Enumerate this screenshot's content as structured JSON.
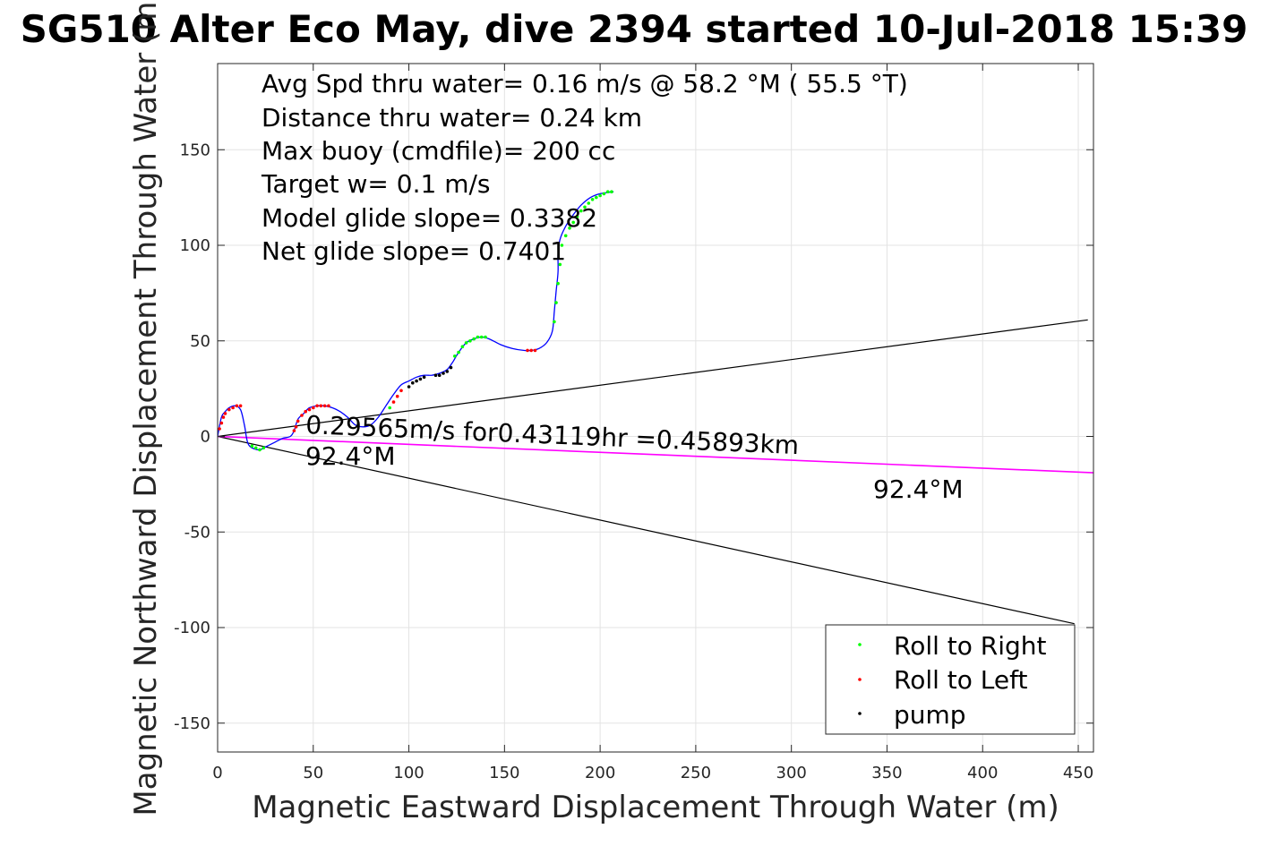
{
  "chart_data": {
    "type": "line",
    "title": "SG510 Alter Eco May, dive 2394 started 10-Jul-2018 15:39",
    "xlabel": "Magnetic Eastward Displacement Through Water (m)",
    "ylabel": "Magnetic Northward Displacement Through Water (m)",
    "xlim": [
      0,
      458
    ],
    "ylim": [
      -165,
      195
    ],
    "xticks": [
      0,
      50,
      100,
      150,
      200,
      250,
      300,
      350,
      400,
      450
    ],
    "yticks": [
      -150,
      -100,
      -50,
      0,
      50,
      100,
      150
    ],
    "grid": true,
    "legend_position": "bottom-right",
    "stats": [
      "Avg Spd thru water=  0.16 m/s @  58.2 °M ( 55.5 °T)",
      "Distance thru water=  0.24 km",
      "Max buoy (cmdfile)= 200 cc",
      "Target w= 0.1 m/s",
      "Model glide slope= 0.3382",
      "Net glide slope= 0.7401"
    ],
    "annotations": {
      "current": "0.29565m/s for0.43119hr =0.45893km",
      "current_heading": "92.4°M",
      "far_heading": "92.4°M"
    },
    "colors": {
      "track": "#0000ff",
      "current": "#ff00ff",
      "roll_right": "#00ff00",
      "roll_left": "#ff0000",
      "pump": "#000000"
    },
    "series": [
      {
        "name": "track",
        "x": [
          0,
          2,
          4,
          6,
          9,
          12,
          14,
          15,
          16,
          18,
          22,
          26,
          30,
          34,
          38,
          40,
          42,
          45,
          48,
          52,
          56,
          60,
          64,
          68,
          72,
          76,
          80,
          84,
          88,
          92,
          96,
          100,
          104,
          108,
          112,
          116,
          120,
          123,
          126,
          130,
          134,
          138,
          142,
          148,
          154,
          160,
          164,
          168,
          172,
          175,
          176,
          177,
          178,
          178,
          179,
          182,
          186,
          190,
          195,
          200,
          207
        ],
        "y": [
          0,
          10,
          13,
          15,
          16,
          14,
          6,
          0,
          -4,
          -6,
          -7,
          -5,
          -3,
          -1,
          0,
          3,
          9,
          12,
          15,
          16,
          16,
          15,
          13,
          10,
          6,
          5,
          6,
          10,
          16,
          22,
          27,
          29,
          31,
          32,
          32,
          33,
          35,
          39,
          44,
          49,
          51,
          52,
          51,
          48,
          46,
          45,
          45,
          46,
          49,
          55,
          65,
          76,
          86,
          95,
          103,
          110,
          116,
          121,
          125,
          127,
          128
        ]
      },
      {
        "name": "Roll to Right",
        "x": [
          18,
          20,
          22,
          24,
          90,
          124,
          126,
          128,
          130,
          132,
          134,
          136,
          138,
          140,
          176,
          177,
          178,
          179,
          180,
          182,
          184,
          186,
          188,
          190,
          192,
          194,
          196,
          198,
          200,
          202,
          204,
          206
        ],
        "y": [
          -5,
          -6,
          -7,
          -6,
          15,
          42,
          44,
          47,
          49,
          50,
          51,
          52,
          52,
          52,
          60,
          70,
          80,
          90,
          100,
          105,
          109,
          112,
          115,
          118,
          120,
          122,
          124,
          125,
          126,
          127,
          128,
          128
        ]
      },
      {
        "name": "Roll to Left",
        "x": [
          1,
          2,
          3,
          4,
          6,
          8,
          10,
          12,
          40,
          41,
          42,
          44,
          46,
          48,
          50,
          52,
          54,
          56,
          58,
          92,
          94,
          96,
          162,
          164,
          166
        ],
        "y": [
          4,
          7,
          10,
          12,
          14,
          15,
          16,
          16,
          3,
          5,
          8,
          11,
          13,
          14,
          15,
          16,
          16,
          16,
          16,
          18,
          21,
          24,
          45,
          45,
          45
        ]
      },
      {
        "name": "pump",
        "x": [
          100,
          102,
          104,
          106,
          108,
          114,
          116,
          118,
          120,
          122
        ],
        "y": [
          26,
          28,
          29,
          30,
          31,
          32,
          32,
          33,
          34,
          36
        ]
      },
      {
        "name": "current",
        "x": [
          0,
          458
        ],
        "y": [
          0,
          -19
        ]
      },
      {
        "name": "envelope-upper",
        "x": [
          0,
          455
        ],
        "y": [
          0,
          61
        ]
      },
      {
        "name": "envelope-lower",
        "x": [
          0,
          448
        ],
        "y": [
          0,
          -98
        ]
      }
    ],
    "legend": [
      "Roll to Right",
      "Roll to Left",
      "pump"
    ]
  }
}
